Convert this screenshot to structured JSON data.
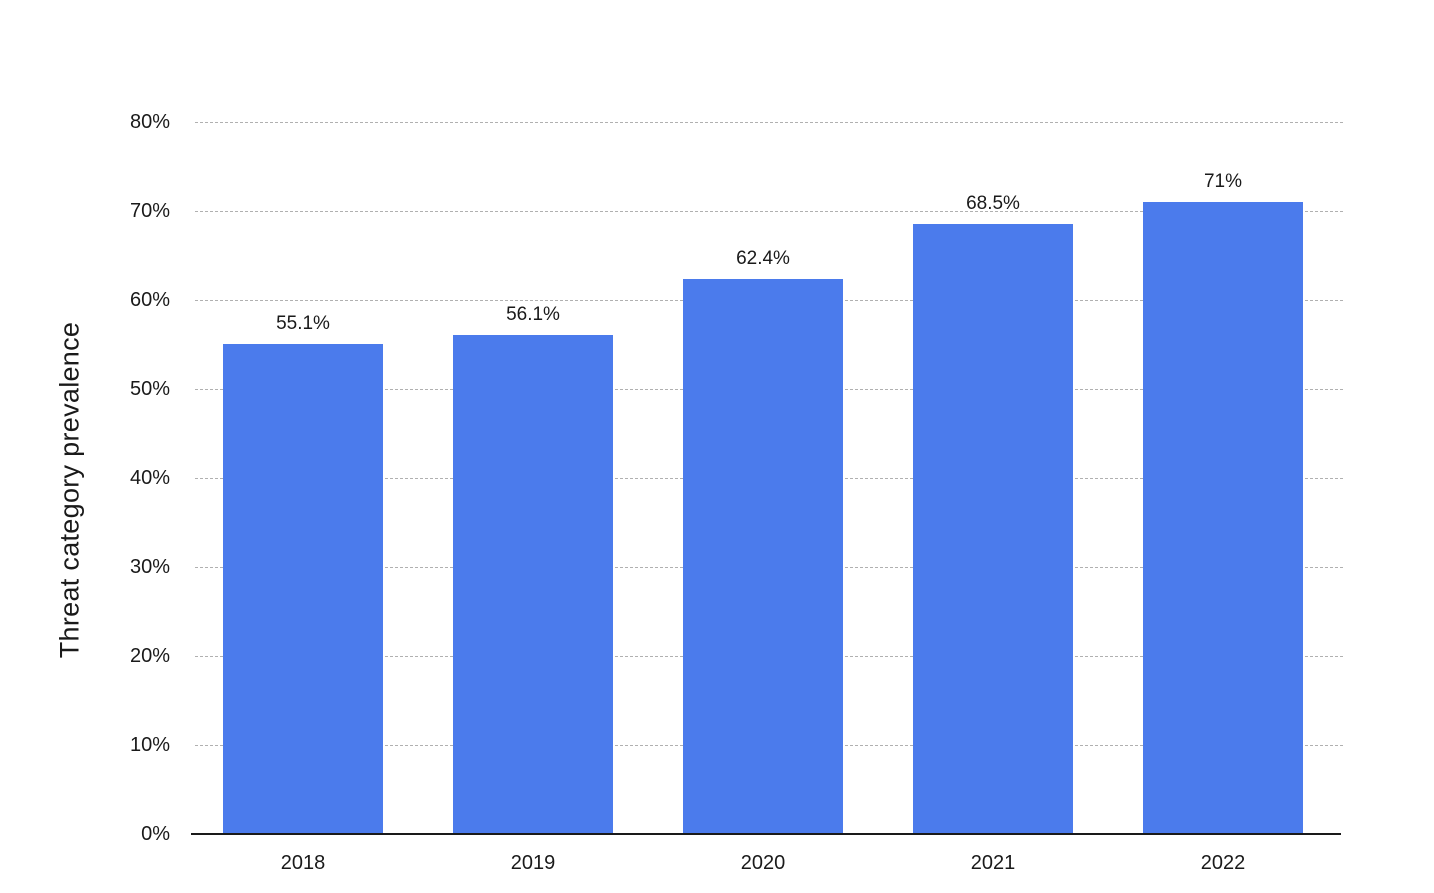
{
  "chart_data": {
    "type": "bar",
    "title": "",
    "xlabel": "",
    "ylabel": "Threat category prevalence",
    "categories": [
      "2018",
      "2019",
      "2020",
      "2021",
      "2022"
    ],
    "values": [
      55.1,
      56.1,
      62.4,
      68.5,
      71
    ],
    "value_labels": [
      "55.1%",
      "56.1%",
      "62.4%",
      "68.5%",
      "71%"
    ],
    "ylim": [
      0,
      80
    ],
    "ytick_step": 10,
    "ytick_labels": [
      "0%",
      "10%",
      "20%",
      "30%",
      "40%",
      "50%",
      "60%",
      "70%",
      "80%"
    ],
    "grid": "horizontal-dashed",
    "legend": "none",
    "colors": {
      "bar": "#4b7bec",
      "text": "#1a1a1a",
      "gridline": "#b0b0b0",
      "axis_line": "#1a1a1a",
      "background": "#ffffff"
    }
  }
}
